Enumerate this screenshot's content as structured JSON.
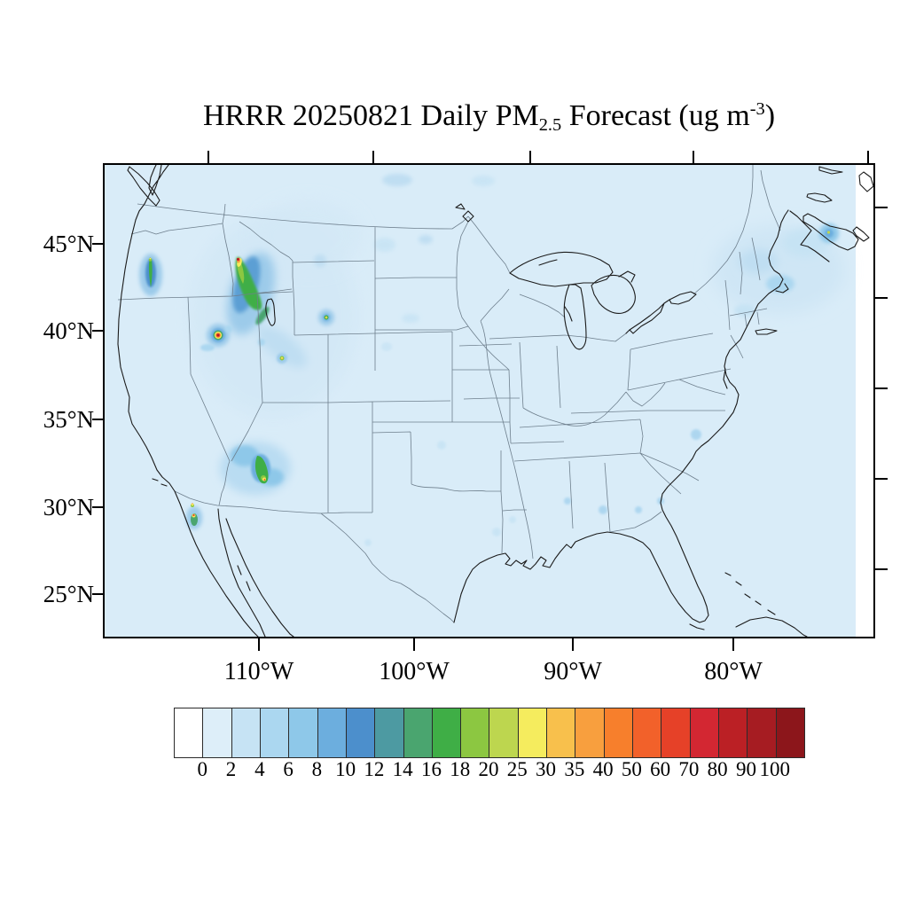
{
  "title": {
    "text_before_sub": "HRRR 20250821 Daily PM",
    "sub": "2.5",
    "text_mid": " Forecast (ug m",
    "sup": "-3",
    "text_after": ")"
  },
  "axes": {
    "lat_ticks": [
      "45°N",
      "40°N",
      "35°N",
      "30°N",
      "25°N"
    ],
    "lon_ticks": [
      "110°W",
      "100°W",
      "90°W",
      "80°W"
    ]
  },
  "colorbar": {
    "labels": [
      "0",
      "2",
      "4",
      "6",
      "8",
      "10",
      "12",
      "14",
      "16",
      "18",
      "20",
      "25",
      "30",
      "35",
      "40",
      "50",
      "60",
      "70",
      "80",
      "90",
      "100"
    ],
    "colors": [
      "#ffffff",
      "#ddeef9",
      "#c6e3f4",
      "#abd7f0",
      "#8ec8e9",
      "#6caede",
      "#4c8fcc",
      "#4d9aa2",
      "#4aa56f",
      "#3fae46",
      "#8cc741",
      "#bdd64f",
      "#f5ec5e",
      "#f8c04c",
      "#f89f3e",
      "#f77f2c",
      "#f2612a",
      "#e64128",
      "#d32732",
      "#bb2025",
      "#a61c22",
      "#8c161b"
    ]
  },
  "map": {
    "background_color": "#d9ecf8",
    "region": "Continental United States (HRRR CONUS domain)"
  },
  "chart_data": {
    "type": "heatmap",
    "title": "HRRR 20250821 Daily PM2.5 Forecast (ug m-3)",
    "units": "ug m-3",
    "levels": [
      0,
      2,
      4,
      6,
      8,
      10,
      12,
      14,
      16,
      18,
      20,
      25,
      30,
      35,
      40,
      50,
      60,
      70,
      80,
      90,
      100
    ],
    "level_colors": [
      "#ffffff",
      "#ddeef9",
      "#c6e3f4",
      "#abd7f0",
      "#8ec8e9",
      "#6caede",
      "#4c8fcc",
      "#4d9aa2",
      "#4aa56f",
      "#3fae46",
      "#8cc741",
      "#bdd64f",
      "#f5ec5e",
      "#f8c04c",
      "#f89f3e",
      "#f77f2c",
      "#f2612a",
      "#e64128",
      "#d32732",
      "#bb2025",
      "#a61c22",
      "#8c161b"
    ],
    "x_axis": {
      "label": "longitude",
      "tick_labels": [
        "110°W",
        "100°W",
        "90°W",
        "80°W"
      ]
    },
    "y_axis": {
      "label": "latitude",
      "tick_labels": [
        "45°N",
        "40°N",
        "35°N",
        "30°N",
        "25°N"
      ]
    },
    "background_field_ug_m3": "0-2 over most of CONUS",
    "hotspots": [
      {
        "name": "southern-idaho-plume",
        "location": "central/southern Idaho, elongated plume",
        "peak_ug_m3_estimate": 100
      },
      {
        "name": "northeast-nevada-point-source",
        "location": "NE Nevada near Utah border",
        "peak_ug_m3_estimate": 100
      },
      {
        "name": "western-oregon-streak",
        "location": "west-central Oregon",
        "peak_ug_m3_estimate": 20
      },
      {
        "name": "central-arizona-plume",
        "location": "central Arizona (Mogollon Rim area)",
        "peak_ug_m3_estimate": 60
      },
      {
        "name": "california-baja-border-spot",
        "location": "S. California / Baja border",
        "peak_ug_m3_estimate": 70
      },
      {
        "name": "northwest-wyoming-spot",
        "location": "NW Wyoming",
        "peak_ug_m3_estimate": 30
      },
      {
        "name": "nova-scotia-spot",
        "location": "Nova Scotia, Canada",
        "peak_ug_m3_estimate": 25
      },
      {
        "name": "new-england-maritimes-haze",
        "location": "New England / Canadian Maritimes",
        "peak_ug_m3_estimate": 6
      },
      {
        "name": "southeast-light-patches",
        "location": "Alabama / Georgia / Carolinas",
        "peak_ug_m3_estimate": 4
      }
    ]
  }
}
